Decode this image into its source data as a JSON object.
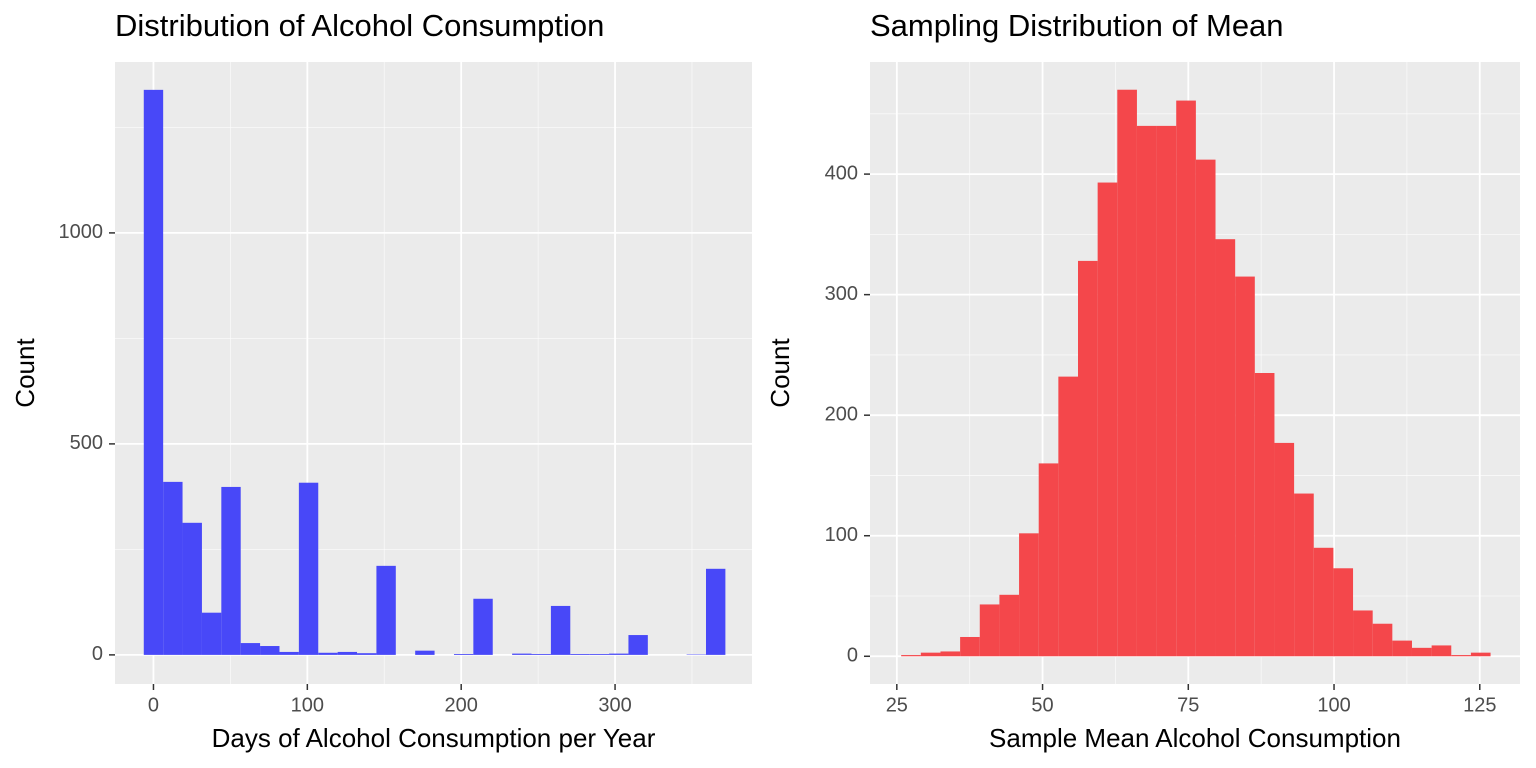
{
  "chart_data": [
    {
      "type": "histogram",
      "title": "Distribution of Alcohol Consumption",
      "xlabel": "Days of Alcohol Consumption per Year",
      "ylabel": "Count",
      "bins": [
        -6.3,
        6.3,
        18.9,
        31.5,
        44.1,
        56.7,
        69.3,
        81.9,
        94.5,
        107.1,
        119.7,
        132.3,
        144.9,
        157.5,
        170.1,
        182.7,
        195.3,
        207.9,
        220.5,
        233.1,
        245.7,
        258.3,
        270.9,
        283.5,
        296.1,
        308.7,
        321.3,
        333.9,
        346.5,
        359.1,
        371.7
      ],
      "values": [
        1339,
        410,
        313,
        100,
        398,
        28,
        21,
        7,
        408,
        5,
        7,
        4,
        211,
        0,
        10,
        0,
        2,
        133,
        0,
        3,
        2,
        116,
        2,
        2,
        3,
        47,
        0,
        0,
        1,
        204
      ],
      "color": "#4848f8",
      "xlim": [
        -25,
        389
      ],
      "ylim": [
        -69,
        1405
      ],
      "xticks": [
        0,
        100,
        200,
        300
      ],
      "yticks": [
        0,
        500,
        1000
      ],
      "grid": true
    },
    {
      "type": "histogram",
      "title": "Sampling Distribution of Mean",
      "xlabel": "Sample Mean Alcohol Consumption",
      "ylabel": "Count",
      "bins": [
        25.75,
        29.12,
        32.49,
        35.86,
        39.23,
        42.6,
        45.97,
        49.34,
        52.71,
        56.08,
        59.45,
        62.82,
        66.19,
        69.56,
        72.93,
        76.3,
        79.67,
        83.04,
        86.41,
        89.78,
        93.15,
        96.52,
        99.89,
        103.26,
        106.63,
        110,
        113.37,
        116.74,
        120.11,
        123.48,
        126.85
      ],
      "values": [
        1,
        3,
        4,
        16,
        43,
        51,
        102,
        160,
        232,
        328,
        393,
        470,
        440,
        440,
        461,
        412,
        346,
        315,
        235,
        177,
        135,
        90,
        73,
        38,
        27,
        13,
        7,
        9,
        1,
        3
      ],
      "color": "#f4474b",
      "xlim": [
        20.4,
        131.9
      ],
      "ylim": [
        -23,
        493
      ],
      "xticks": [
        25,
        50,
        75,
        100,
        125
      ],
      "yticks": [
        0,
        100,
        200,
        300,
        400
      ],
      "grid": true
    }
  ]
}
